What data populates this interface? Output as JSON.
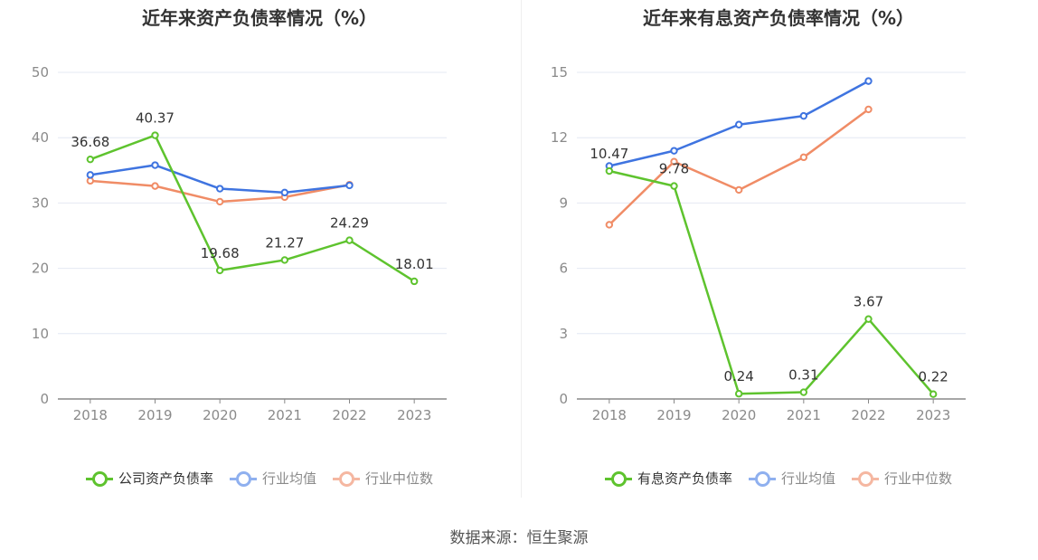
{
  "source_label": "数据来源：恒生聚源",
  "colors": {
    "primary": "#5ec32e",
    "average": "#3f74e0",
    "median": "#f08c66",
    "legend_average": "#8fb0ef",
    "legend_median": "#f5b7a1",
    "grid": "#e4e8f3",
    "axis": "#888888"
  },
  "chart_data": [
    {
      "type": "line",
      "title": "近年来资产负债率情况（%）",
      "categories": [
        "2018",
        "2019",
        "2020",
        "2021",
        "2022",
        "2023"
      ],
      "ylim": [
        0,
        50
      ],
      "yticks": [
        0,
        10,
        20,
        30,
        40,
        50
      ],
      "series": [
        {
          "name": "公司资产负债率",
          "values": [
            36.68,
            40.37,
            19.68,
            21.27,
            24.29,
            18.01
          ],
          "labeled": true
        },
        {
          "name": "行业均值",
          "values": [
            34.3,
            35.8,
            32.2,
            31.6,
            32.7,
            null
          ],
          "labeled": false
        },
        {
          "name": "行业中位数",
          "values": [
            33.4,
            32.6,
            30.2,
            30.9,
            32.8,
            null
          ],
          "labeled": false
        }
      ],
      "data_labels": [
        "36.68",
        "40.37",
        "19.68",
        "21.27",
        "24.29",
        "18.01"
      ],
      "legend_position": "bottom",
      "grid": true
    },
    {
      "type": "line",
      "title": "近年来有息资产负债率情况（%）",
      "categories": [
        "2018",
        "2019",
        "2020",
        "2021",
        "2022",
        "2023"
      ],
      "ylim": [
        0,
        15
      ],
      "yticks": [
        0,
        3,
        6,
        9,
        12,
        15
      ],
      "series": [
        {
          "name": "有息资产负债率",
          "values": [
            10.47,
            9.78,
            0.24,
            0.31,
            3.67,
            0.22
          ],
          "labeled": true
        },
        {
          "name": "行业均值",
          "values": [
            10.7,
            11.4,
            12.6,
            13.0,
            14.6,
            null
          ],
          "labeled": false
        },
        {
          "name": "行业中位数",
          "values": [
            8.0,
            10.9,
            9.6,
            11.1,
            13.3,
            null
          ],
          "labeled": false
        }
      ],
      "data_labels": [
        "10.47",
        "9.78",
        "0.24",
        "0.31",
        "3.67",
        "0.22"
      ],
      "legend_position": "bottom",
      "grid": true
    }
  ]
}
